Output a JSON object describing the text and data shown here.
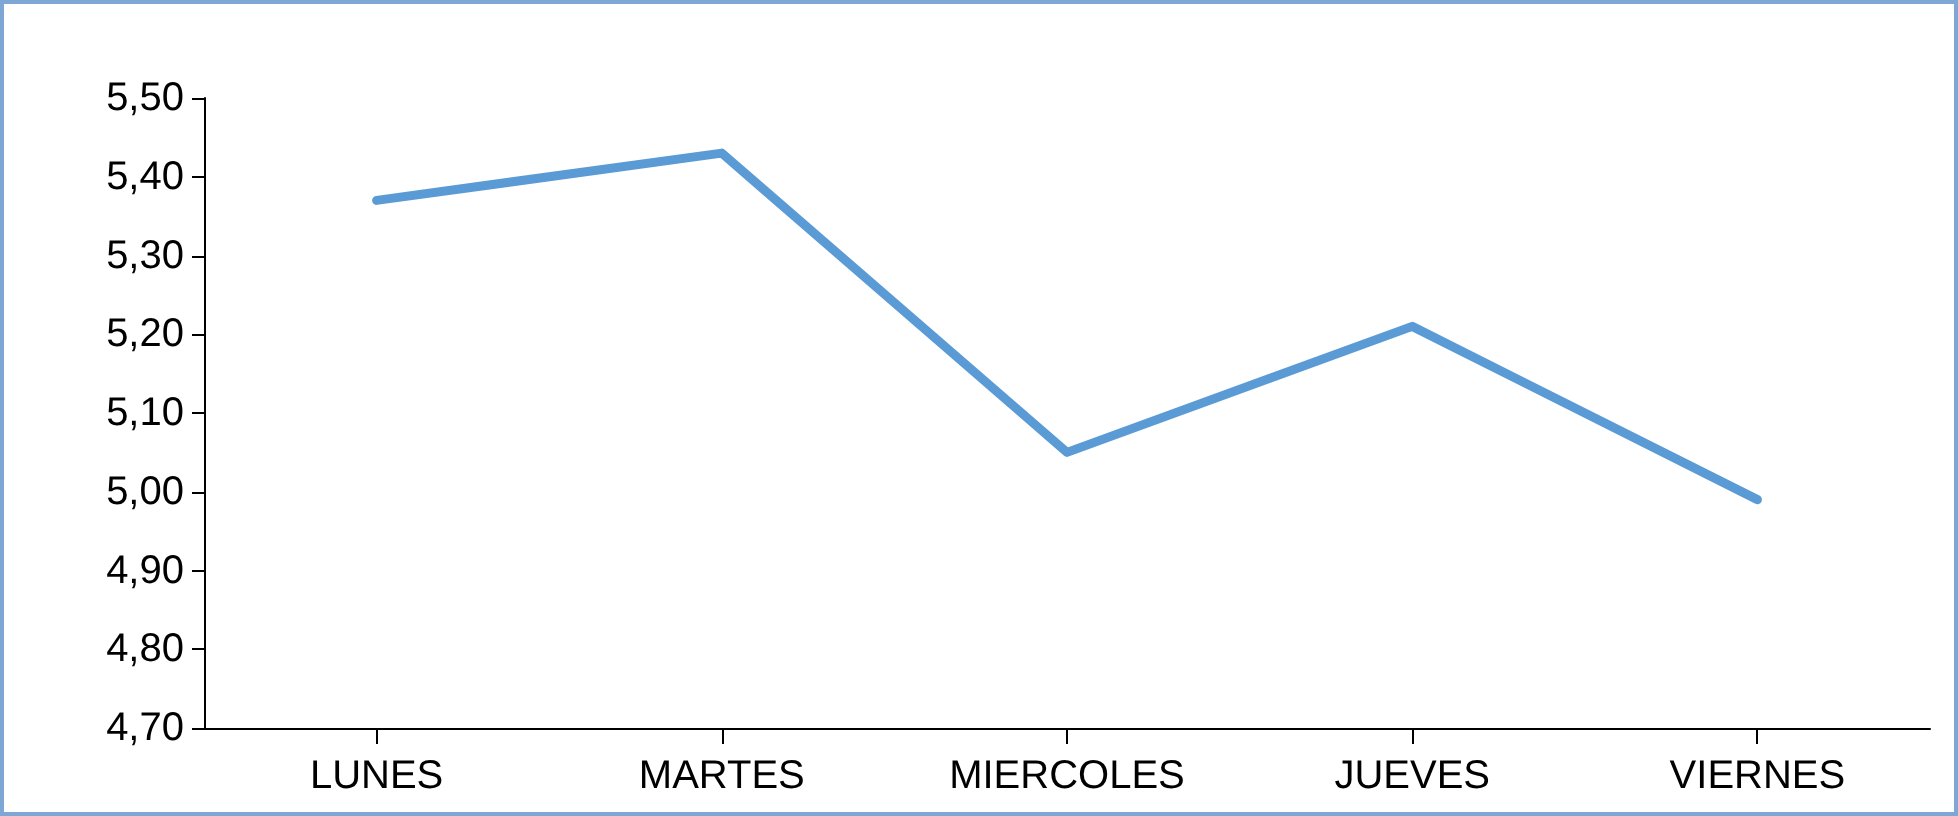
{
  "chart_data": {
    "type": "line",
    "categories": [
      "LUNES",
      "MARTES",
      "MIERCOLES",
      "JUEVES",
      "VIERNES"
    ],
    "series": [
      {
        "color": "#5b9bd5",
        "values": [
          5.37,
          5.43,
          5.05,
          5.21,
          4.99
        ]
      }
    ],
    "ylim": [
      4.7,
      5.5
    ],
    "yticks": [
      {
        "value": 4.7,
        "label": "4,70"
      },
      {
        "value": 4.8,
        "label": "4,80"
      },
      {
        "value": 4.9,
        "label": "4,90"
      },
      {
        "value": 5.0,
        "label": "5,00"
      },
      {
        "value": 5.1,
        "label": "5,10"
      },
      {
        "value": 5.2,
        "label": "5,20"
      },
      {
        "value": 5.3,
        "label": "5,30"
      },
      {
        "value": 5.4,
        "label": "5,40"
      },
      {
        "value": 5.5,
        "label": "5,50"
      }
    ],
    "grid": false,
    "marker": "none",
    "line_style": "solid"
  }
}
